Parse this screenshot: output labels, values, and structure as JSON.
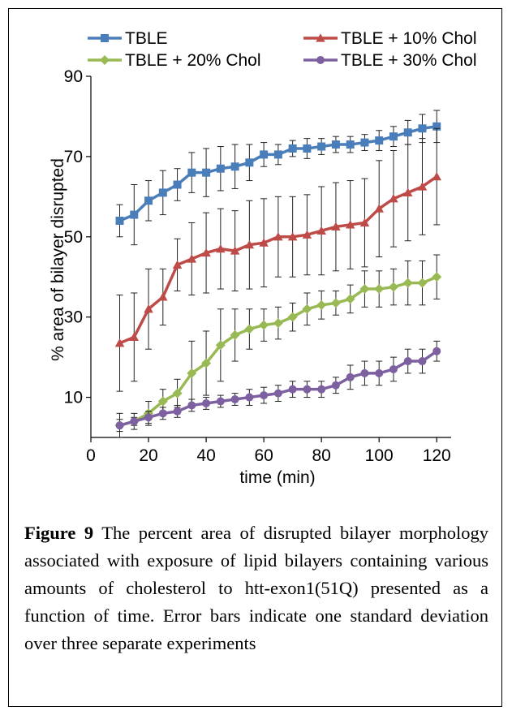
{
  "caption": {
    "label": "Figure 9",
    "text": "The percent area of disrupted bilayer morphology associated with exposure of lipid bilayers containing various amounts of cholesterol to htt-exon1(51Q) presented as a function of time. Error bars indicate one standard deviation over three separate experiments"
  },
  "chart_data": {
    "type": "line",
    "xlabel": "time (min)",
    "ylabel": "% area of bilayer disrupted",
    "xlim": [
      0,
      125
    ],
    "ylim": [
      0,
      90
    ],
    "xticks": [
      0,
      20,
      40,
      60,
      80,
      100,
      120
    ],
    "yticks": [
      10,
      30,
      50,
      70,
      90
    ],
    "grid": false,
    "legend": "top, two columns",
    "x": [
      10,
      15,
      20,
      25,
      30,
      35,
      40,
      45,
      50,
      55,
      60,
      65,
      70,
      75,
      80,
      85,
      90,
      95,
      100,
      105,
      110,
      115,
      120
    ],
    "series": [
      {
        "name": "TBLE",
        "color": "#4a7ebb",
        "marker": "square",
        "values": [
          54,
          55.5,
          59,
          61,
          63,
          66,
          66,
          67,
          67.5,
          68.5,
          70.5,
          70.5,
          72,
          72,
          72.5,
          73,
          73,
          73.5,
          74,
          75,
          76,
          77,
          77.5
        ],
        "errors": [
          4,
          7.5,
          5,
          5.5,
          4,
          5,
          6,
          5.5,
          5.5,
          4.5,
          3,
          2.5,
          2,
          2.5,
          2,
          2,
          2,
          2,
          2.5,
          2.5,
          3,
          3.5,
          4
        ]
      },
      {
        "name": "TBLE + 10% Chol",
        "color": "#be4b48",
        "marker": "triangle",
        "values": [
          23.5,
          25,
          32,
          35,
          43,
          44.5,
          46,
          47,
          46.5,
          48,
          48.5,
          50,
          50,
          50.5,
          51.5,
          52.5,
          53,
          53.5,
          57,
          59.5,
          61,
          62.5,
          65
        ],
        "errors": [
          12,
          11,
          10,
          7,
          6.5,
          9,
          10,
          10,
          10,
          11,
          11,
          10,
          10,
          10,
          11,
          11,
          11,
          11,
          12,
          12,
          12,
          12,
          12
        ]
      },
      {
        "name": "TBLE + 20% Chol",
        "color": "#98b954",
        "marker": "diamond",
        "values": [
          3,
          4,
          6,
          9,
          11,
          16,
          18.5,
          23,
          25.5,
          27,
          28,
          28.5,
          30,
          32,
          33,
          33.5,
          34.5,
          37,
          37,
          37.5,
          38.5,
          38.5,
          40
        ],
        "errors": [
          3,
          2,
          3,
          3,
          3.5,
          8,
          8,
          9,
          6.5,
          5,
          4,
          4,
          3.5,
          4,
          3.5,
          3,
          3.5,
          4.5,
          4.5,
          4.5,
          5.5,
          5.5,
          5.5
        ]
      },
      {
        "name": "TBLE + 30% Chol",
        "color": "#7d60a0",
        "marker": "circle",
        "values": [
          3,
          4,
          5,
          6,
          6.5,
          8,
          8.5,
          9,
          9.5,
          10,
          10.5,
          11,
          12,
          12,
          12,
          13,
          15,
          16,
          16,
          17,
          19,
          19,
          21.5
        ],
        "errors": [
          1.5,
          1,
          1.5,
          1.5,
          1.5,
          1.5,
          1.5,
          1.5,
          1.5,
          2,
          2,
          2,
          2,
          2,
          2,
          2,
          3,
          3,
          3,
          3,
          3,
          3,
          2.5
        ]
      }
    ]
  }
}
